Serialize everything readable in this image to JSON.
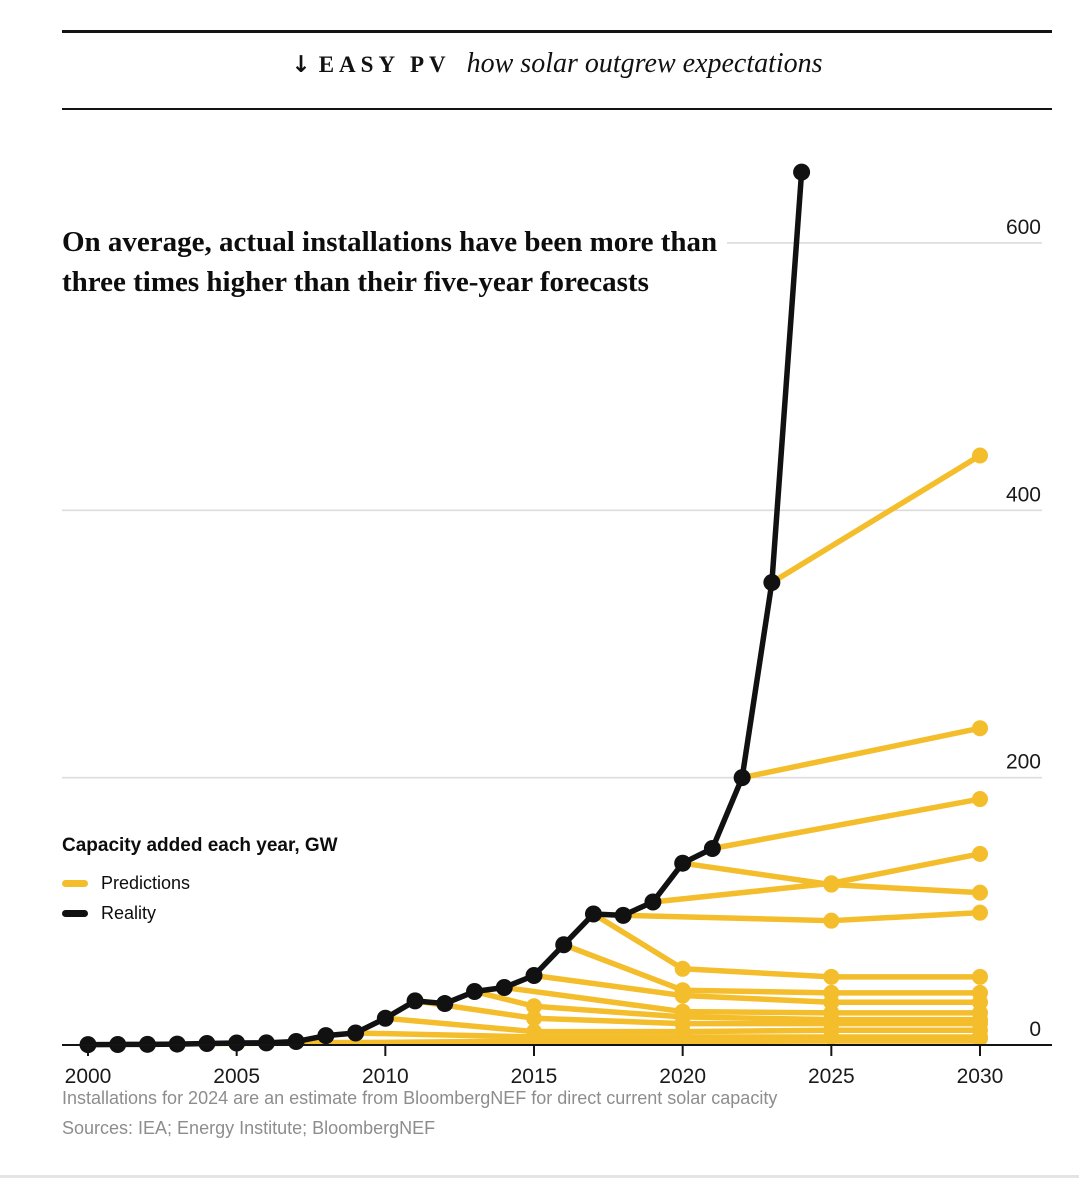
{
  "header": {
    "kicker_arrow": "↓",
    "kicker": "EASY PV",
    "title_italic": "how solar outgrew expectations"
  },
  "headline": {
    "line1": "On average, actual installations have been more than",
    "line2": "three times higher than their five-year forecasts"
  },
  "legend": {
    "title": "Capacity added each year, GW",
    "items": [
      {
        "label": "Predictions",
        "color": "#F4BD2B"
      },
      {
        "label": "Reality",
        "color": "#111111"
      }
    ]
  },
  "footnotes": {
    "note": "Installations for 2024 are an estimate from BloombergNEF for direct current solar capacity",
    "sources": "Sources: IEA; Energy Institute; BloombergNEF"
  },
  "colors": {
    "prediction_yellow": "#F4BD2B",
    "reality_black": "#111111",
    "grid_gray": "#dcdcdc",
    "axis_black": "#141414",
    "tick_label": "#1a1a1a"
  },
  "chart_data": {
    "type": "line",
    "title": "How solar outgrew expectations",
    "subtitle": "On average, actual installations have been more than three times higher than their five-year forecasts",
    "ylabel": "Capacity added each year, GW",
    "xlabel": "",
    "x_ticks": [
      2000,
      2005,
      2010,
      2015,
      2020,
      2025,
      2030
    ],
    "y_ticks": [
      600,
      400,
      200,
      0
    ],
    "xlim": [
      1999.1,
      2032
    ],
    "ylim": [
      0,
      675
    ],
    "grid": "horizontal",
    "legend_position": "left-middle",
    "series": [
      {
        "name": "Reality",
        "role": "reality",
        "points": [
          [
            2000,
            0.3
          ],
          [
            2001,
            0.4
          ],
          [
            2002,
            0.5
          ],
          [
            2003,
            0.7
          ],
          [
            2004,
            1.1
          ],
          [
            2005,
            1.5
          ],
          [
            2006,
            1.6
          ],
          [
            2007,
            2.6
          ],
          [
            2008,
            7
          ],
          [
            2009,
            9
          ],
          [
            2010,
            20
          ],
          [
            2011,
            33
          ],
          [
            2012,
            31
          ],
          [
            2013,
            40
          ],
          [
            2014,
            43
          ],
          [
            2015,
            52
          ],
          [
            2016,
            75
          ],
          [
            2017,
            98
          ],
          [
            2018,
            97
          ],
          [
            2019,
            107
          ],
          [
            2020,
            136
          ],
          [
            2021,
            147
          ],
          [
            2022,
            200
          ],
          [
            2023,
            346
          ],
          [
            2024,
            653
          ]
        ]
      },
      {
        "name": "Forecast made 2023",
        "role": "prediction",
        "points": [
          [
            2023,
            346
          ],
          [
            2030,
            441
          ]
        ]
      },
      {
        "name": "Forecast made 2022",
        "role": "prediction",
        "points": [
          [
            2022,
            200
          ],
          [
            2030,
            237
          ]
        ]
      },
      {
        "name": "Forecast made 2021",
        "role": "prediction",
        "points": [
          [
            2021,
            147
          ],
          [
            2030,
            184
          ]
        ]
      },
      {
        "name": "Forecast made 2020",
        "role": "prediction",
        "points": [
          [
            2020,
            136
          ],
          [
            2025,
            120
          ],
          [
            2030,
            114
          ]
        ]
      },
      {
        "name": "Forecast made 2019",
        "role": "prediction",
        "points": [
          [
            2019,
            107
          ],
          [
            2025,
            121
          ],
          [
            2030,
            143
          ]
        ]
      },
      {
        "name": "Forecast made 2018",
        "role": "prediction",
        "points": [
          [
            2018,
            97
          ],
          [
            2025,
            93
          ],
          [
            2030,
            99
          ]
        ]
      },
      {
        "name": "Forecast made 2017",
        "role": "prediction",
        "points": [
          [
            2017,
            98
          ],
          [
            2020,
            57
          ],
          [
            2025,
            51
          ],
          [
            2030,
            51
          ]
        ]
      },
      {
        "name": "Forecast made 2016",
        "role": "prediction",
        "points": [
          [
            2016,
            75
          ],
          [
            2020,
            41
          ],
          [
            2025,
            39
          ],
          [
            2030,
            39
          ]
        ]
      },
      {
        "name": "Forecast made 2015",
        "role": "prediction",
        "points": [
          [
            2015,
            52
          ],
          [
            2020,
            37
          ],
          [
            2025,
            32
          ],
          [
            2030,
            32
          ]
        ]
      },
      {
        "name": "Forecast made 2014",
        "role": "prediction",
        "points": [
          [
            2014,
            43
          ],
          [
            2020,
            25
          ],
          [
            2025,
            24
          ],
          [
            2030,
            24
          ]
        ]
      },
      {
        "name": "Forecast made 2013",
        "role": "prediction",
        "points": [
          [
            2013,
            40
          ],
          [
            2015,
            29
          ],
          [
            2020,
            21
          ],
          [
            2025,
            19
          ],
          [
            2030,
            19
          ]
        ]
      },
      {
        "name": "Forecast made 2011",
        "role": "prediction",
        "points": [
          [
            2011,
            33
          ],
          [
            2015,
            20
          ],
          [
            2020,
            16
          ],
          [
            2025,
            16
          ],
          [
            2030,
            16
          ]
        ]
      },
      {
        "name": "Forecast made 2010",
        "role": "prediction",
        "points": [
          [
            2010,
            20
          ],
          [
            2015,
            10
          ],
          [
            2020,
            10
          ],
          [
            2025,
            11
          ],
          [
            2030,
            11
          ]
        ]
      },
      {
        "name": "Forecast made 2009",
        "role": "prediction",
        "points": [
          [
            2009,
            9
          ],
          [
            2015,
            6
          ],
          [
            2020,
            6
          ],
          [
            2025,
            6
          ],
          [
            2030,
            6
          ]
        ]
      },
      {
        "name": "Forecast made 2006",
        "role": "prediction",
        "points": [
          [
            2006,
            1.6
          ],
          [
            2010,
            2
          ],
          [
            2015,
            3
          ],
          [
            2020,
            4
          ],
          [
            2025,
            4
          ],
          [
            2030,
            5
          ]
        ]
      },
      {
        "name": "Forecast made 2004",
        "role": "prediction",
        "points": [
          [
            2004,
            1.1
          ],
          [
            2010,
            1.5
          ],
          [
            2015,
            2
          ],
          [
            2020,
            2.5
          ],
          [
            2025,
            3
          ],
          [
            2030,
            3
          ]
        ]
      }
    ]
  }
}
